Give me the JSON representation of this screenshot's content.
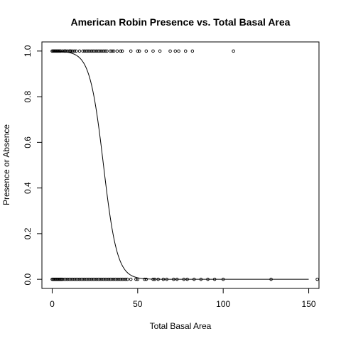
{
  "chart_data": {
    "type": "scatter",
    "title": "American Robin Presence vs. Total Basal Area",
    "xlabel": "Total Basal Area",
    "ylabel": "Presence or Absence",
    "xlim": [
      -6,
      156
    ],
    "ylim": [
      -0.04,
      1.04
    ],
    "xticks": [
      0,
      50,
      100,
      150
    ],
    "xtick_labels": [
      "0",
      "50",
      "100",
      "150"
    ],
    "yticks": [
      0.0,
      0.2,
      0.4,
      0.6,
      0.8,
      1.0
    ],
    "ytick_labels": [
      "0.0",
      "0.2",
      "0.4",
      "0.6",
      "0.8",
      "1.0"
    ],
    "grid": false,
    "legend": "none",
    "series": [
      {
        "marker": "open-circle",
        "points_presence": [
          0,
          0.5,
          1,
          1.5,
          2,
          2.5,
          3,
          3.5,
          4,
          4.5,
          5,
          6,
          7,
          7.5,
          8,
          9,
          10,
          10.5,
          11,
          12,
          13,
          14,
          16,
          18,
          19,
          20,
          21,
          22,
          23,
          24,
          25,
          26,
          27,
          28,
          29,
          30,
          31,
          32,
          34,
          35,
          36,
          38,
          40,
          41,
          46,
          50,
          51,
          55,
          59,
          63,
          69,
          72,
          74,
          78,
          82,
          106
        ],
        "points_absence": [
          0,
          0.5,
          1,
          1.5,
          2,
          2.5,
          3,
          3.5,
          4,
          4.5,
          5,
          5.5,
          6,
          7,
          8,
          9,
          10,
          11,
          12,
          13,
          14,
          15,
          16,
          17,
          18,
          19,
          20,
          21,
          22,
          23,
          24,
          25,
          26,
          27,
          28,
          29,
          30,
          31,
          32,
          33,
          34,
          35,
          36,
          37,
          38,
          39,
          40,
          41,
          42,
          43,
          44,
          46,
          49,
          50,
          54,
          55,
          59,
          60,
          62,
          65,
          67,
          71,
          73,
          77,
          79,
          83,
          87,
          91,
          95,
          100,
          128,
          155
        ]
      },
      {
        "type": "line",
        "model": "logistic",
        "intercept": 7.5,
        "slope": -0.25,
        "x_range": [
          0,
          150
        ]
      }
    ]
  }
}
